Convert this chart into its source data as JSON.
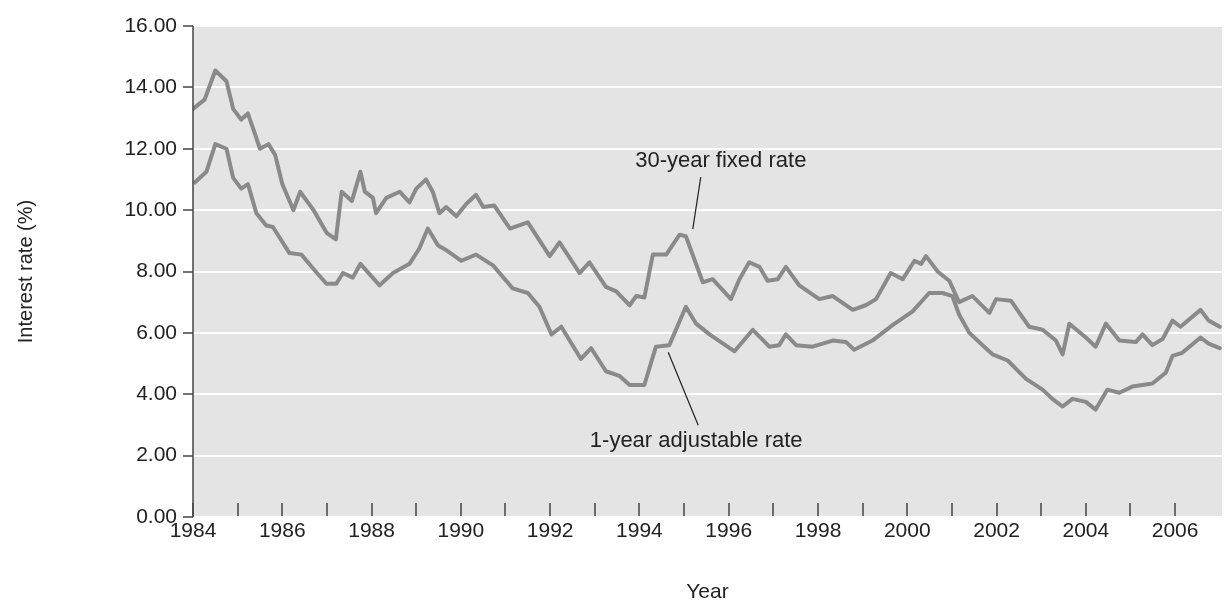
{
  "chart_data": {
    "type": "line",
    "xlabel": "Year",
    "ylabel": "Interest rate (%)",
    "xlim": [
      1984,
      2007.05
    ],
    "xticks": [
      1984,
      {
        "value": 1985,
        "label": null
      },
      1986,
      {
        "value": 1987,
        "label": null
      },
      1988,
      {
        "value": 1989,
        "label": null
      },
      1990,
      {
        "value": 1991,
        "label": null
      },
      1992,
      {
        "value": 1993,
        "label": null
      },
      1994,
      {
        "value": 1995,
        "label": null
      },
      1996,
      {
        "value": 1997,
        "label": null
      },
      1998,
      {
        "value": 1999,
        "label": null
      },
      2000,
      {
        "value": 2001,
        "label": null
      },
      2002,
      {
        "value": 2003,
        "label": null
      },
      2004,
      {
        "value": 2005,
        "label": null
      },
      2006
    ],
    "ylim": [
      0,
      16
    ],
    "yticks": [
      {
        "value": 0,
        "label": "0.00"
      },
      {
        "value": 2,
        "label": "2.00"
      },
      {
        "value": 4,
        "label": "4.00"
      },
      {
        "value": 6,
        "label": "6.00"
      },
      {
        "value": 8,
        "label": "8.00"
      },
      {
        "value": 10,
        "label": "10.00"
      },
      {
        "value": 12,
        "label": "12.00"
      },
      {
        "value": 14,
        "label": "14.00"
      },
      {
        "value": 16,
        "label": "16.00"
      }
    ],
    "grid": "y",
    "legend": false,
    "marker": "none",
    "line_style": "solid",
    "series": [
      {
        "color": "#8a8a8a",
        "x": [
          1984.0,
          1984.26,
          1984.5,
          1984.75,
          1984.9,
          1985.08,
          1985.23,
          1985.5,
          1985.69,
          1985.84,
          1986.0,
          1986.25,
          1986.4,
          1986.7,
          1987.0,
          1987.2,
          1987.33,
          1987.56,
          1987.75,
          1987.85,
          1988.03,
          1988.1,
          1988.33,
          1988.63,
          1988.85,
          1989.0,
          1989.22,
          1989.37,
          1989.52,
          1989.67,
          1989.9,
          1990.12,
          1990.34,
          1990.5,
          1990.75,
          1991.1,
          1991.5,
          1991.99,
          1992.21,
          1992.66,
          1992.88,
          1993.25,
          1993.48,
          1993.78,
          1993.93,
          1994.11,
          1994.3,
          1994.6,
          1994.9,
          1995.04,
          1995.42,
          1995.64,
          1996.05,
          1996.24,
          1996.46,
          1996.69,
          1996.87,
          1997.1,
          1997.28,
          1997.58,
          1998.03,
          1998.33,
          1998.78,
          1999.07,
          1999.3,
          1999.63,
          1999.9,
          2000.16,
          2000.31,
          2000.42,
          2000.68,
          2000.94,
          2001.16,
          2001.46,
          2001.84,
          2001.99,
          2002.32,
          2002.73,
          2003.03,
          2003.33,
          2003.48,
          2003.63,
          2004.0,
          2004.22,
          2004.45,
          2004.75,
          2005.12,
          2005.27,
          2005.49,
          2005.72,
          2005.94,
          2006.12,
          2006.57,
          2006.75,
          2007.0
        ],
        "values": [
          13.3,
          13.6,
          14.55,
          14.2,
          13.3,
          12.95,
          13.15,
          12.0,
          12.15,
          11.8,
          10.85,
          10.0,
          10.6,
          10.0,
          9.25,
          9.05,
          10.6,
          10.3,
          11.25,
          10.6,
          10.4,
          9.9,
          10.4,
          10.6,
          10.25,
          10.7,
          11.0,
          10.6,
          9.9,
          10.1,
          9.8,
          10.2,
          10.5,
          10.1,
          10.15,
          9.4,
          9.6,
          8.5,
          8.95,
          7.95,
          8.3,
          7.5,
          7.35,
          6.9,
          7.2,
          7.15,
          8.55,
          8.55,
          9.2,
          9.15,
          7.65,
          7.75,
          7.1,
          7.75,
          8.3,
          8.15,
          7.7,
          7.75,
          8.15,
          7.55,
          7.1,
          7.2,
          6.75,
          6.9,
          7.1,
          7.95,
          7.75,
          8.35,
          8.25,
          8.5,
          8.0,
          7.7,
          7.0,
          7.2,
          6.65,
          7.1,
          7.05,
          6.2,
          6.1,
          5.75,
          5.3,
          6.3,
          5.85,
          5.55,
          6.3,
          5.75,
          5.7,
          5.95,
          5.6,
          5.8,
          6.4,
          6.2,
          6.75,
          6.4,
          6.2
        ]
      },
      {
        "color": "#8a8a8a",
        "x": [
          1984.04,
          1984.3,
          1984.5,
          1984.75,
          1984.9,
          1985.08,
          1985.23,
          1985.42,
          1985.64,
          1985.79,
          1986.16,
          1986.43,
          1986.69,
          1986.99,
          1987.21,
          1987.36,
          1987.58,
          1987.75,
          1988.18,
          1988.48,
          1988.85,
          1989.07,
          1989.26,
          1989.49,
          1989.67,
          1990.01,
          1990.34,
          1990.72,
          1991.16,
          1991.5,
          1991.76,
          1992.03,
          1992.25,
          1992.69,
          1992.92,
          1993.25,
          1993.55,
          1993.78,
          1994.11,
          1994.37,
          1994.67,
          1995.04,
          1995.27,
          1995.57,
          1996.13,
          1996.54,
          1996.91,
          1997.13,
          1997.28,
          1997.51,
          1997.88,
          1998.33,
          1998.63,
          1998.81,
          1999.22,
          1999.67,
          2000.12,
          2000.49,
          2000.79,
          2001.01,
          2001.16,
          2001.39,
          2001.76,
          2001.91,
          2002.25,
          2002.66,
          2003.03,
          2003.25,
          2003.48,
          2003.7,
          2004.0,
          2004.22,
          2004.48,
          2004.75,
          2005.04,
          2005.49,
          2005.79,
          2005.94,
          2006.16,
          2006.57,
          2006.75,
          2007.0
        ],
        "values": [
          10.9,
          11.25,
          12.15,
          12.0,
          11.05,
          10.7,
          10.85,
          9.9,
          9.5,
          9.45,
          8.6,
          8.55,
          8.1,
          7.6,
          7.6,
          7.95,
          7.8,
          8.25,
          7.55,
          7.95,
          8.25,
          8.75,
          9.4,
          8.85,
          8.7,
          8.35,
          8.55,
          8.2,
          7.45,
          7.3,
          6.85,
          5.95,
          6.2,
          5.15,
          5.5,
          4.75,
          4.6,
          4.3,
          4.3,
          5.55,
          5.6,
          6.85,
          6.3,
          5.95,
          5.4,
          6.1,
          5.55,
          5.6,
          5.95,
          5.6,
          5.55,
          5.75,
          5.7,
          5.45,
          5.75,
          6.25,
          6.7,
          7.3,
          7.3,
          7.2,
          6.6,
          6.0,
          5.5,
          5.3,
          5.1,
          4.5,
          4.15,
          3.85,
          3.6,
          3.85,
          3.75,
          3.5,
          4.15,
          4.05,
          4.25,
          4.35,
          4.7,
          5.25,
          5.35,
          5.85,
          5.65,
          5.5
        ]
      }
    ],
    "annotations": [
      {
        "text": "30-year fixed rate",
        "x": 1995.15,
        "y": 9.25
      },
      {
        "text": "1-year adjustable rate",
        "x": 1994.6,
        "y": 5.5
      }
    ]
  }
}
